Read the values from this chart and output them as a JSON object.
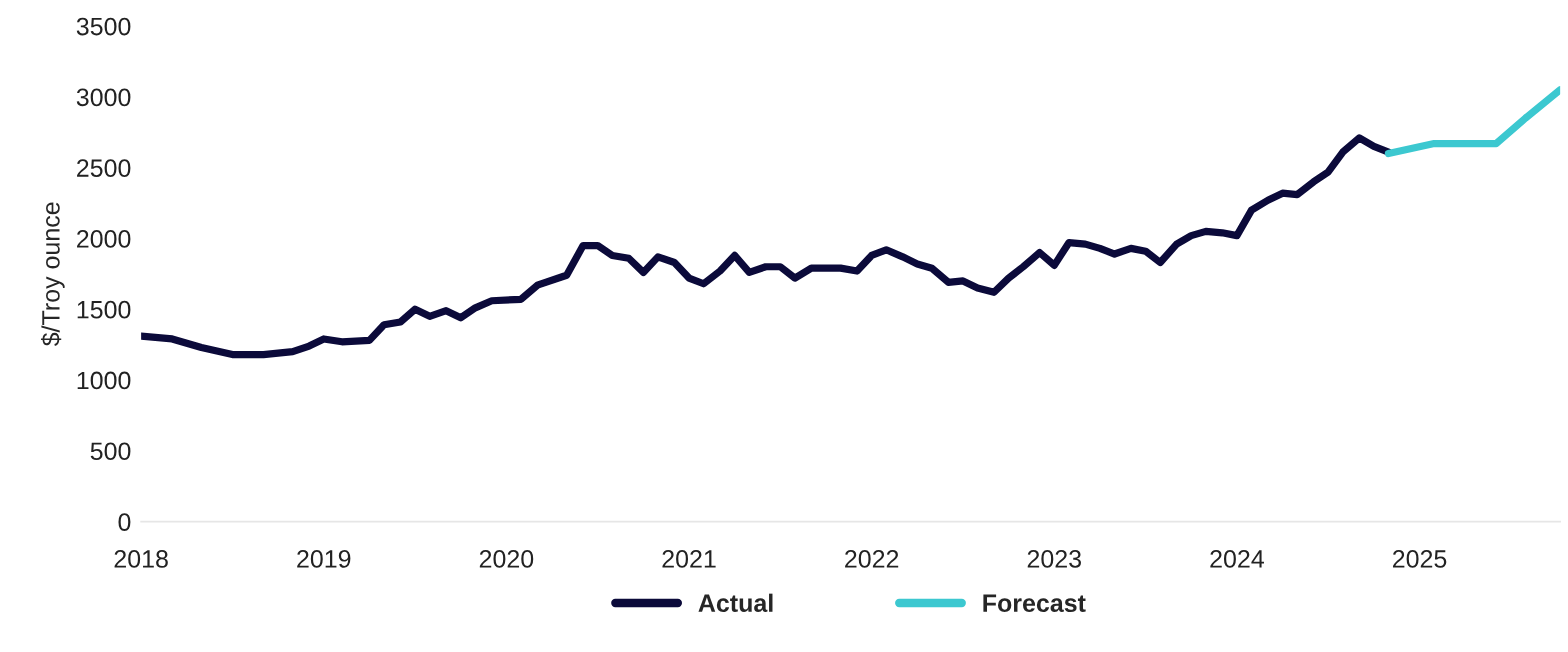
{
  "chart_data": {
    "type": "line",
    "ylabel": "$/Troy ounce",
    "xlim": [
      2018,
      2025.77
    ],
    "xticks": [
      2018,
      2019,
      2020,
      2021,
      2022,
      2023,
      2024,
      2025
    ],
    "ylim": [
      0,
      3500
    ],
    "yticks": [
      0,
      500,
      1000,
      1500,
      2000,
      2500,
      3000,
      3500
    ],
    "legend": "bottom",
    "grid": false,
    "series": [
      {
        "name": "Actual",
        "color": "#0b0a3a",
        "x": [
          2018.0,
          2018.17,
          2018.33,
          2018.5,
          2018.67,
          2018.83,
          2018.92,
          2019.0,
          2019.1,
          2019.25,
          2019.33,
          2019.42,
          2019.5,
          2019.58,
          2019.67,
          2019.75,
          2019.83,
          2019.92,
          2020.08,
          2020.17,
          2020.33,
          2020.42,
          2020.5,
          2020.58,
          2020.67,
          2020.75,
          2020.83,
          2020.92,
          2021.0,
          2021.08,
          2021.17,
          2021.25,
          2021.33,
          2021.42,
          2021.5,
          2021.58,
          2021.67,
          2021.83,
          2021.92,
          2022.0,
          2022.08,
          2022.17,
          2022.25,
          2022.33,
          2022.42,
          2022.5,
          2022.58,
          2022.67,
          2022.75,
          2022.83,
          2022.92,
          2023.0,
          2023.08,
          2023.17,
          2023.25,
          2023.33,
          2023.42,
          2023.5,
          2023.58,
          2023.67,
          2023.75,
          2023.83,
          2023.92,
          2024.0,
          2024.08,
          2024.17,
          2024.25,
          2024.33,
          2024.42,
          2024.5,
          2024.58,
          2024.67,
          2024.75,
          2024.83
        ],
        "values": [
          1310,
          1290,
          1230,
          1180,
          1180,
          1200,
          1240,
          1290,
          1270,
          1280,
          1390,
          1410,
          1500,
          1450,
          1490,
          1440,
          1510,
          1560,
          1570,
          1670,
          1740,
          1950,
          1950,
          1880,
          1860,
          1760,
          1870,
          1830,
          1720,
          1680,
          1770,
          1880,
          1760,
          1800,
          1800,
          1720,
          1790,
          1790,
          1770,
          1880,
          1920,
          1870,
          1820,
          1790,
          1690,
          1700,
          1650,
          1620,
          1720,
          1800,
          1900,
          1810,
          1970,
          1960,
          1930,
          1890,
          1930,
          1910,
          1830,
          1960,
          2020,
          2050,
          2040,
          2020,
          2200,
          2270,
          2320,
          2310,
          2400,
          2470,
          2610,
          2710,
          2650,
          2610
        ]
      },
      {
        "name": "Forecast",
        "color": "#3cc8d0",
        "x": [
          2024.83,
          2025.08,
          2025.42,
          2025.58,
          2025.77
        ],
        "values": [
          2600,
          2670,
          2670,
          2850,
          3050
        ]
      }
    ]
  }
}
